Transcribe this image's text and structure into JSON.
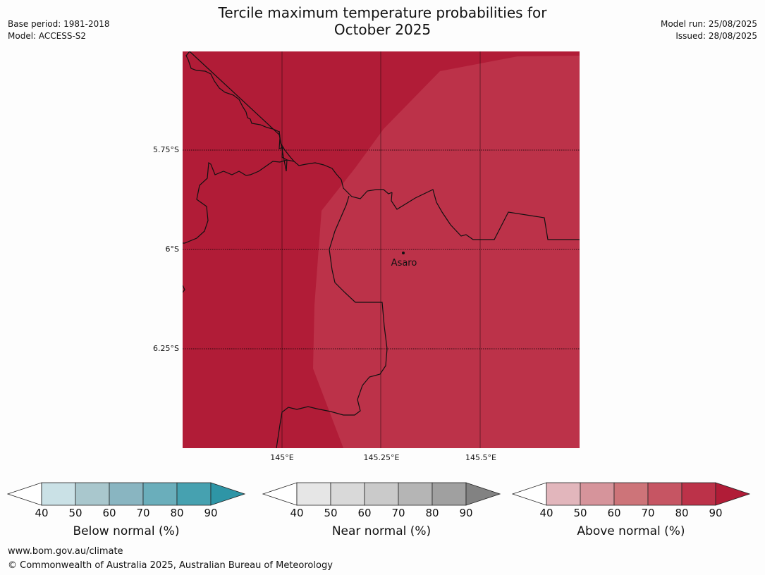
{
  "header": {
    "title_line1": "Tercile maximum temperature probabilities for",
    "title_line2": "October 2025",
    "base_period": "Base period: 1981-2018",
    "model": "Model: ACCESS-S2",
    "model_run": "Model run: 25/08/2025",
    "issued": "Issued: 28/08/2025"
  },
  "map": {
    "lat_labels": [
      "5.75°S",
      "6°S",
      "6.25°S"
    ],
    "lon_labels": [
      "145°E",
      "145.25°E",
      "145.5°E"
    ],
    "place": "Asaro",
    "colors": {
      "dark_region": "#b11c37",
      "light_region": "#bc3249",
      "border": "#111111"
    }
  },
  "colorbars": [
    {
      "title": "Below normal (%)",
      "ticks": [
        "40",
        "50",
        "60",
        "70",
        "80",
        "90"
      ],
      "colors": [
        "#ffffff",
        "#cae1e6",
        "#a9c7cd",
        "#89b5c1",
        "#6aaebb",
        "#46a1b0",
        "#2e95a6"
      ]
    },
    {
      "title": "Near normal (%)",
      "ticks": [
        "40",
        "50",
        "60",
        "70",
        "80",
        "90"
      ],
      "colors": [
        "#ffffff",
        "#e6e6e6",
        "#d9d9d9",
        "#cacaca",
        "#b5b5b5",
        "#a0a0a0",
        "#828282"
      ]
    },
    {
      "title": "Above normal (%)",
      "ticks": [
        "40",
        "50",
        "60",
        "70",
        "80",
        "90"
      ],
      "colors": [
        "#ffffff",
        "#e2b6bc",
        "#d6949b",
        "#cd7479",
        "#c65563",
        "#bc3249",
        "#b11c37"
      ]
    }
  ],
  "footer": {
    "url": "www.bom.gov.au/climate",
    "copyright": "© Commonwealth of Australia 2025, Australian Bureau of Meteorology"
  }
}
